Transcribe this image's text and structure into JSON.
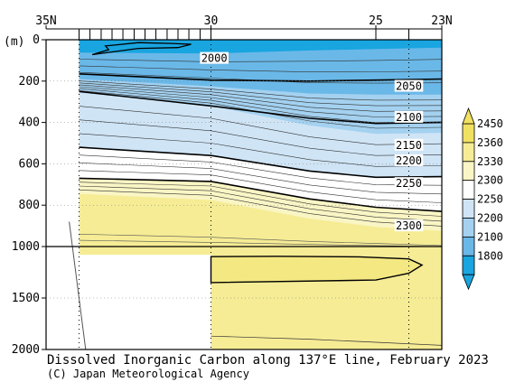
{
  "chart_data": {
    "type": "section contour",
    "title": "Dissolved Inorganic Carbon along 137°E line, February 2023",
    "credit": "(C) Japan Meteorological Agency",
    "ylabel": "(m)",
    "x_ticks": [
      {
        "label": "35N",
        "lat": 35
      },
      {
        "label": "30",
        "lat": 30
      },
      {
        "label": "25",
        "lat": 25
      },
      {
        "label": "23N",
        "lat": 23
      }
    ],
    "x_range": [
      35,
      23
    ],
    "y_ticks_upper": [
      {
        "label": "0",
        "depth": 0
      },
      {
        "label": "200",
        "depth": 200
      },
      {
        "label": "400",
        "depth": 400
      },
      {
        "label": "600",
        "depth": 600
      },
      {
        "label": "800",
        "depth": 800
      },
      {
        "label": "1000",
        "depth": 1000
      }
    ],
    "y_ticks_lower": [
      {
        "label": "1500",
        "depth": 1500
      },
      {
        "label": "2000",
        "depth": 2000
      }
    ],
    "y_upper_range": [
      0,
      1000
    ],
    "y_lower_range": [
      1000,
      2000
    ],
    "station_lats": [
      34.0,
      33.67,
      33.33,
      33.0,
      32.67,
      32.33,
      32.0,
      31.67,
      31.33,
      31.0,
      30.67,
      30.33,
      30.0,
      25.0,
      24.0,
      23.0
    ],
    "data_start_lat": 34.0,
    "colorbar": {
      "labels": [
        "2450",
        "2360",
        "2330",
        "2300",
        "2250",
        "2200",
        "2100",
        "1800"
      ],
      "colors": [
        "#f0e160",
        "#f6ec96",
        "#faf5c4",
        "#ffffff",
        "#cfe5f6",
        "#a3d1ef",
        "#69b8e8",
        "#19a5df"
      ]
    },
    "contour_labels": [
      {
        "text": "2000",
        "lat": 29.9,
        "depth": 90
      },
      {
        "text": "2050",
        "lat": 24.0,
        "depth": 225
      },
      {
        "text": "2100",
        "lat": 24.0,
        "depth": 375
      },
      {
        "text": "2150",
        "lat": 24.0,
        "depth": 510
      },
      {
        "text": "2200",
        "lat": 24.0,
        "depth": 585
      },
      {
        "text": "2250",
        "lat": 24.0,
        "depth": 695
      },
      {
        "text": "2300",
        "lat": 24.0,
        "depth": 900
      }
    ],
    "boundaries": {
      "band_1800_2100": [
        [
          34.0,
          62
        ],
        [
          30.0,
          67
        ],
        [
          27.0,
          52
        ],
        [
          25.0,
          45
        ],
        [
          23.0,
          38
        ]
      ],
      "band_2100_2200": [
        [
          34.0,
          190
        ],
        [
          30.0,
          225
        ],
        [
          27.0,
          260
        ],
        [
          25.0,
          265
        ],
        [
          23.0,
          265
        ]
      ],
      "band_2200_2250": [
        [
          34.0,
          255
        ],
        [
          30.0,
          320
        ],
        [
          27.0,
          415
        ],
        [
          25.0,
          455
        ],
        [
          23.0,
          450
        ]
      ],
      "band_2250_2300": [
        [
          34.0,
          520
        ],
        [
          30.0,
          560
        ],
        [
          27.0,
          635
        ],
        [
          25.0,
          665
        ],
        [
          23.0,
          662
        ]
      ],
      "band_2300_2330": [
        [
          34.0,
          670
        ],
        [
          30.0,
          685
        ],
        [
          27.0,
          770
        ],
        [
          25.0,
          810
        ],
        [
          23.0,
          830
        ]
      ],
      "band_2330_2360": [
        [
          34.0,
          745
        ],
        [
          30.0,
          775
        ],
        [
          27.0,
          865
        ],
        [
          25.0,
          905
        ],
        [
          23.0,
          925
        ]
      ]
    },
    "contours_thick": [
      [
        [
          34.0,
          165
        ],
        [
          30.0,
          195
        ],
        [
          27.0,
          200
        ],
        [
          25.0,
          195
        ],
        [
          23.0,
          190
        ]
      ],
      [
        [
          34.0,
          250
        ],
        [
          30.0,
          320
        ],
        [
          27.0,
          380
        ],
        [
          25.0,
          405
        ],
        [
          23.0,
          400
        ]
      ],
      [
        [
          34.0,
          520
        ],
        [
          30.0,
          560
        ],
        [
          27.0,
          635
        ],
        [
          25.0,
          665
        ],
        [
          23.0,
          662
        ]
      ],
      [
        [
          34.0,
          670
        ],
        [
          30.0,
          685
        ],
        [
          27.0,
          770
        ],
        [
          25.0,
          810
        ],
        [
          23.0,
          830
        ]
      ]
    ],
    "closed_contour": [
      [
        30.0,
        1350
      ],
      [
        25.0,
        1325
      ],
      [
        24.0,
        1260
      ],
      [
        23.6,
        1180
      ],
      [
        24.0,
        1120
      ],
      [
        25.5,
        1100
      ],
      [
        28.0,
        1095
      ],
      [
        30.0,
        1098
      ]
    ],
    "bottom_contour": [
      [
        30.0,
        1870
      ],
      [
        27.0,
        1900
      ],
      [
        25.0,
        1930
      ],
      [
        23.0,
        1960
      ]
    ],
    "surface_loop": [
      [
        33.2,
        30
      ],
      [
        32.2,
        14
      ],
      [
        31.2,
        18
      ],
      [
        30.6,
        22
      ],
      [
        31.0,
        38
      ],
      [
        32.2,
        42
      ],
      [
        33.6,
        72
      ],
      [
        33.1,
        48
      ]
    ],
    "bathymetry": [
      [
        34.3,
        880
      ],
      [
        33.8,
        2000
      ]
    ],
    "nodata_lower": {
      "lat_start": 34.0,
      "lat_end": 30.0,
      "depth_top": 1080,
      "depth_bottom": 2000
    }
  }
}
